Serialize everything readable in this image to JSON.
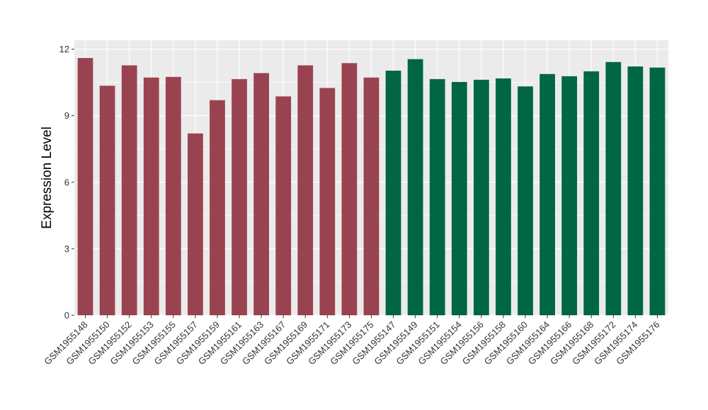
{
  "chart_data": {
    "type": "bar",
    "title": "",
    "xlabel": "",
    "ylabel": "Expression Level",
    "ylim": [
      0,
      12.4
    ],
    "yticks": [
      0,
      3,
      6,
      9,
      12
    ],
    "grid": true,
    "legend": "none",
    "background": "#ebebeb",
    "gridline_color": "#ffffff",
    "categories": [
      "GSM1955148",
      "GSM1955150",
      "GSM1955152",
      "GSM1955153",
      "GSM1955155",
      "GSM1955157",
      "GSM1955159",
      "GSM1955161",
      "GSM1955163",
      "GSM1955167",
      "GSM1955169",
      "GSM1955171",
      "GSM1955173",
      "GSM1955175",
      "GSM1955147",
      "GSM1955149",
      "GSM1955151",
      "GSM1955154",
      "GSM1955156",
      "GSM1955158",
      "GSM1955160",
      "GSM1955164",
      "GSM1955166",
      "GSM1955168",
      "GSM1955172",
      "GSM1955174",
      "GSM1955176"
    ],
    "values": [
      11.6,
      10.35,
      11.27,
      10.72,
      10.75,
      8.2,
      9.7,
      10.65,
      10.92,
      9.87,
      11.27,
      10.25,
      11.37,
      10.72,
      11.03,
      11.55,
      10.65,
      10.52,
      10.62,
      10.68,
      10.32,
      10.88,
      10.78,
      11.0,
      11.42,
      11.22,
      11.17
    ],
    "bar_colors": [
      "#9a4350",
      "#9a4350",
      "#9a4350",
      "#9a4350",
      "#9a4350",
      "#9a4350",
      "#9a4350",
      "#9a4350",
      "#9a4350",
      "#9a4350",
      "#9a4350",
      "#9a4350",
      "#9a4350",
      "#9a4350",
      "#006644",
      "#006644",
      "#006644",
      "#006644",
      "#006644",
      "#006644",
      "#006644",
      "#006644",
      "#006644",
      "#006644",
      "#006644",
      "#006644",
      "#006644"
    ]
  }
}
